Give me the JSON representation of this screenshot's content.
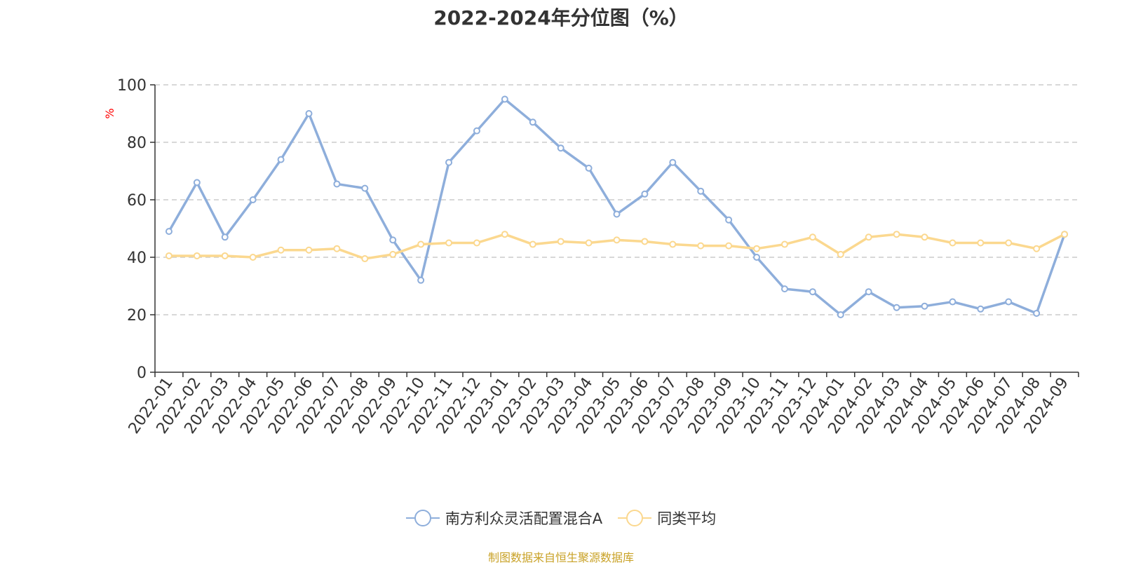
{
  "chart_data": {
    "type": "line",
    "title": "2022-2024年分位图（%）",
    "ylabel": "%",
    "xlabel": "",
    "ylim": [
      0,
      100
    ],
    "yticks": [
      0,
      20,
      40,
      60,
      80,
      100
    ],
    "grid": true,
    "legend_position": "bottom",
    "categories": [
      "2022-01",
      "2022-02",
      "2022-03",
      "2022-04",
      "2022-05",
      "2022-06",
      "2022-07",
      "2022-08",
      "2022-09",
      "2022-10",
      "2022-11",
      "2022-12",
      "2023-01",
      "2023-02",
      "2023-03",
      "2023-04",
      "2023-05",
      "2023-06",
      "2023-07",
      "2023-08",
      "2023-09",
      "2023-10",
      "2023-11",
      "2023-12",
      "2024-01",
      "2024-02",
      "2024-03",
      "2024-04",
      "2024-05",
      "2024-06",
      "2024-07",
      "2024-08",
      "2024-09"
    ],
    "series": [
      {
        "name": "南方利众灵活配置混合A",
        "color": "#8eaedb",
        "values": [
          49,
          66,
          47,
          60,
          74,
          90,
          65.5,
          64,
          46,
          32,
          73,
          84,
          95,
          87,
          78,
          71,
          55,
          62,
          73,
          63,
          53,
          40,
          29,
          28,
          20,
          28,
          22.5,
          23,
          24.5,
          22,
          24.5,
          20.5,
          48
        ]
      },
      {
        "name": "同类平均",
        "color": "#fbd88f",
        "values": [
          40.5,
          40.5,
          40.5,
          40,
          42.5,
          42.5,
          43,
          39.5,
          41,
          44.5,
          45,
          45,
          48,
          44.5,
          45.5,
          45,
          46,
          45.5,
          44.5,
          44,
          44,
          43,
          44.5,
          47,
          41,
          47,
          48,
          47,
          45,
          45,
          45,
          43,
          48
        ]
      }
    ]
  },
  "source_note": "制图数据来自恒生聚源数据库"
}
